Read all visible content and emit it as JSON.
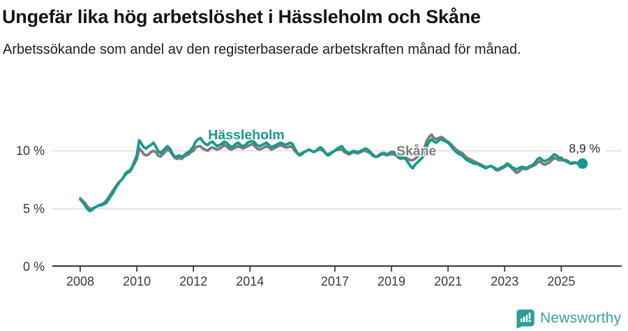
{
  "header": {
    "title": "Ungefär lika hög arbetslöshet i Hässleholm och Skåne",
    "subtitle": "Arbetssökande som andel av den registerbaserade arbetskraften månad för månad."
  },
  "footer": {
    "brand": "Newsworthy",
    "logo_icon": "bar-chart-speech-bubble-icon",
    "brand_color": "#3aa29b",
    "logo_fill": "#2f9e96"
  },
  "chart_data": {
    "type": "line",
    "title": "Ungefär lika hög arbetslöshet i Hässleholm och Skåne",
    "xlabel": "",
    "ylabel": "",
    "x_unit": "decimal_year",
    "x_start": 2008.0,
    "x_step": 0.0833,
    "xlim": [
      2007.8,
      2026.1
    ],
    "ylim": [
      0,
      12.3
    ],
    "grid": "horizontal",
    "grid_color": "#dcdcdc",
    "axis_color": "#3f3f3f",
    "tick_label_color": "#3a3a3a",
    "xticks": [
      2008,
      2010,
      2012,
      2014,
      2017,
      2019,
      2021,
      2023,
      2025
    ],
    "yticks": [
      {
        "value": 0,
        "label": "0 %"
      },
      {
        "value": 5,
        "label": "5 %"
      },
      {
        "value": 10,
        "label": "10 %"
      }
    ],
    "legend_position": "inline-labels",
    "series": [
      {
        "name": "Skåne",
        "color": "#7d7d7d",
        "label_pos": [
          2019.17,
          9.62
        ],
        "label_anchor": "start",
        "values": [
          5.9,
          5.7,
          5.5,
          5.2,
          5.0,
          5.0,
          5.1,
          5.2,
          5.3,
          5.4,
          5.5,
          5.7,
          6.0,
          6.3,
          6.6,
          6.9,
          7.2,
          7.4,
          7.6,
          7.9,
          8.1,
          8.2,
          8.5,
          8.9,
          9.3,
          10.2,
          10.0,
          9.7,
          9.6,
          9.7,
          9.9,
          10.0,
          9.9,
          9.6,
          9.5,
          9.7,
          9.9,
          10.1,
          10.0,
          9.7,
          9.4,
          9.3,
          9.4,
          9.3,
          9.5,
          9.6,
          9.7,
          9.9,
          10.0,
          10.3,
          10.4,
          10.4,
          10.2,
          10.1,
          10.0,
          10.2,
          10.3,
          10.2,
          10.1,
          10.2,
          10.3,
          10.5,
          10.4,
          10.2,
          10.1,
          10.2,
          10.3,
          10.4,
          10.3,
          10.2,
          10.3,
          10.4,
          10.5,
          10.6,
          10.4,
          10.2,
          10.1,
          10.2,
          10.3,
          10.4,
          10.3,
          10.1,
          10.2,
          10.3,
          10.4,
          10.5,
          10.4,
          10.3,
          10.3,
          10.4,
          10.3,
          10.0,
          9.8,
          9.7,
          9.8,
          9.9,
          10.0,
          10.1,
          10.0,
          9.9,
          10.0,
          10.1,
          10.1,
          10.0,
          9.8,
          9.7,
          9.8,
          9.9,
          10.0,
          10.1,
          10.1,
          10.1,
          9.9,
          9.8,
          9.7,
          9.8,
          9.9,
          9.8,
          9.8,
          9.9,
          10.0,
          10.0,
          9.9,
          9.8,
          9.6,
          9.5,
          9.5,
          9.6,
          9.7,
          9.7,
          9.6,
          9.7,
          9.7,
          9.7,
          9.6,
          9.4,
          9.3,
          9.4,
          9.4,
          9.3,
          9.2,
          9.2,
          9.3,
          9.5,
          9.7,
          9.9,
          10.3,
          10.9,
          11.2,
          11.4,
          11.1,
          11.0,
          11.1,
          11.2,
          11.1,
          10.9,
          10.8,
          10.6,
          10.4,
          10.2,
          10.0,
          9.9,
          9.8,
          9.6,
          9.4,
          9.3,
          9.2,
          9.1,
          9.0,
          8.9,
          8.8,
          8.7,
          8.6,
          8.6,
          8.7,
          8.6,
          8.4,
          8.3,
          8.4,
          8.5,
          8.6,
          8.8,
          8.7,
          8.5,
          8.3,
          8.1,
          8.2,
          8.4,
          8.5,
          8.4,
          8.5,
          8.6,
          8.7,
          8.8,
          9.0,
          9.1,
          8.9,
          8.8,
          8.9,
          9.0,
          9.2,
          9.4,
          9.3,
          9.2,
          9.2,
          9.2,
          9.2,
          9.1,
          8.9,
          8.9,
          9.0,
          8.9,
          8.9,
          8.9
        ]
      },
      {
        "name": "Hässleholm",
        "color": "#17998d",
        "label_pos": [
          2012.52,
          11.0
        ],
        "label_anchor": "start",
        "end_dot": true,
        "end_label": "8,9 %",
        "values": [
          5.8,
          5.6,
          5.3,
          5.0,
          4.8,
          4.9,
          5.1,
          5.2,
          5.3,
          5.3,
          5.4,
          5.5,
          5.8,
          6.1,
          6.4,
          6.8,
          7.1,
          7.4,
          7.6,
          8.0,
          8.2,
          8.3,
          8.6,
          9.1,
          9.6,
          10.9,
          10.6,
          10.3,
          10.2,
          10.4,
          10.5,
          10.7,
          10.4,
          10.0,
          9.8,
          10.0,
          10.2,
          10.4,
          10.2,
          9.8,
          9.5,
          9.5,
          9.6,
          9.5,
          9.6,
          9.8,
          9.9,
          10.1,
          10.4,
          10.8,
          11.0,
          11.1,
          10.8,
          10.6,
          10.5,
          10.7,
          10.8,
          10.6,
          10.4,
          10.5,
          10.6,
          10.8,
          10.7,
          10.5,
          10.3,
          10.4,
          10.6,
          10.7,
          10.5,
          10.4,
          10.5,
          10.7,
          10.8,
          10.9,
          10.7,
          10.5,
          10.4,
          10.5,
          10.6,
          10.7,
          10.5,
          10.3,
          10.4,
          10.5,
          10.6,
          10.7,
          10.6,
          10.5,
          10.6,
          10.7,
          10.6,
          10.2,
          9.8,
          9.6,
          9.7,
          9.9,
          10.0,
          10.1,
          10.0,
          9.9,
          10.0,
          10.2,
          10.3,
          10.1,
          9.8,
          9.6,
          9.7,
          9.9,
          10.0,
          10.2,
          10.3,
          10.4,
          10.1,
          9.9,
          9.8,
          9.9,
          10.0,
          9.9,
          9.9,
          10.0,
          10.1,
          10.2,
          10.1,
          9.9,
          9.7,
          9.5,
          9.5,
          9.7,
          9.8,
          9.8,
          9.7,
          9.8,
          9.9,
          9.9,
          9.7,
          9.5,
          9.4,
          9.4,
          9.3,
          9.0,
          8.7,
          8.5,
          8.8,
          9.0,
          9.2,
          9.4,
          9.8,
          10.4,
          10.8,
          11.0,
          10.8,
          10.7,
          10.9,
          11.0,
          10.9,
          10.8,
          10.7,
          10.5,
          10.2,
          10.0,
          9.8,
          9.7,
          9.6,
          9.4,
          9.2,
          9.1,
          9.0,
          8.9,
          8.9,
          8.8,
          8.7,
          8.6,
          8.5,
          8.6,
          8.7,
          8.6,
          8.5,
          8.4,
          8.5,
          8.6,
          8.7,
          8.9,
          8.8,
          8.6,
          8.5,
          8.4,
          8.5,
          8.6,
          8.6,
          8.5,
          8.6,
          8.7,
          8.8,
          9.0,
          9.3,
          9.4,
          9.2,
          9.1,
          9.2,
          9.3,
          9.5,
          9.7,
          9.6,
          9.4,
          9.4,
          9.2,
          9.1,
          9.0,
          8.9,
          9.0,
          9.0,
          8.9,
          8.8,
          8.9
        ]
      }
    ]
  }
}
